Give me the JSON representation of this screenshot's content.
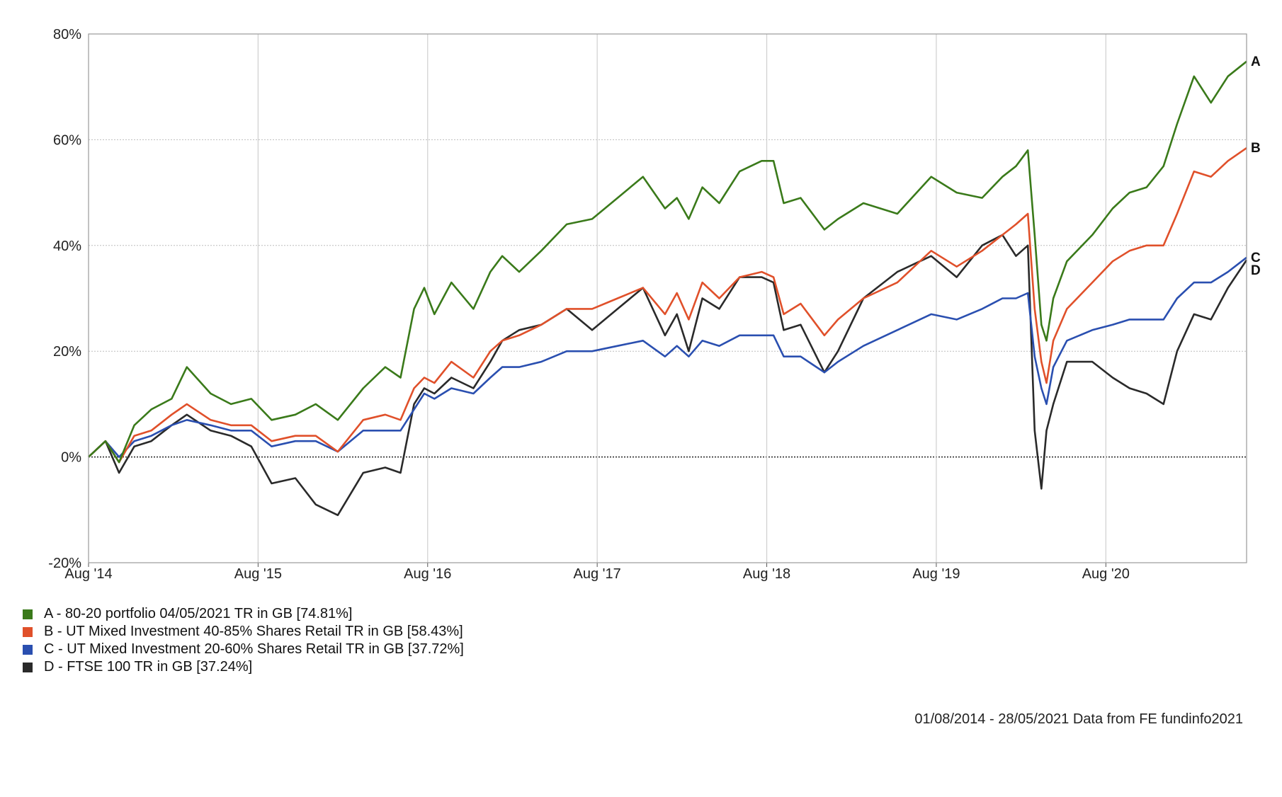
{
  "chart_data": {
    "type": "line",
    "y_tick_labels": [
      "80%",
      "60%",
      "40%",
      "20%",
      "0%",
      "-20%"
    ],
    "y_ticks": [
      80,
      60,
      40,
      20,
      0,
      -20
    ],
    "ylim": [
      -20,
      80
    ],
    "x_tick_labels": [
      "Aug '14",
      "Aug '15",
      "Aug '16",
      "Aug '17",
      "Aug '18",
      "Aug '19",
      "Aug '20"
    ],
    "x_ticks": [
      2014.58,
      2015.58,
      2016.58,
      2017.58,
      2018.58,
      2019.58,
      2020.58
    ],
    "xlim": [
      2014.58,
      2021.41
    ],
    "grid": true,
    "legend_position": "bottom-left",
    "series": [
      {
        "key": "A",
        "name": "A - 80-20 portfolio 04/05/2021 TR in GB [74.81%]",
        "color": "#3a7a1a",
        "x": [
          2014.58,
          2014.68,
          2014.76,
          2014.85,
          2014.95,
          2015.07,
          2015.16,
          2015.3,
          2015.42,
          2015.54,
          2015.66,
          2015.8,
          2015.92,
          2016.05,
          2016.2,
          2016.33,
          2016.42,
          2016.5,
          2016.56,
          2016.62,
          2016.72,
          2016.85,
          2016.95,
          2017.02,
          2017.12,
          2017.25,
          2017.4,
          2017.55,
          2017.7,
          2017.85,
          2017.98,
          2018.05,
          2018.12,
          2018.2,
          2018.3,
          2018.42,
          2018.55,
          2018.62,
          2018.68,
          2018.78,
          2018.92,
          2019.0,
          2019.15,
          2019.35,
          2019.55,
          2019.7,
          2019.85,
          2019.97,
          2020.05,
          2020.12,
          2020.16,
          2020.2,
          2020.23,
          2020.27,
          2020.35,
          2020.5,
          2020.62,
          2020.72,
          2020.82,
          2020.92,
          2021.0,
          2021.1,
          2021.2,
          2021.3,
          2021.41
        ],
        "values": [
          0,
          3,
          -1,
          6,
          9,
          11,
          17,
          12,
          10,
          11,
          7,
          8,
          10,
          7,
          13,
          17,
          15,
          28,
          32,
          27,
          33,
          28,
          35,
          38,
          35,
          39,
          44,
          45,
          49,
          53,
          47,
          49,
          45,
          51,
          48,
          54,
          56,
          56,
          48,
          49,
          43,
          45,
          48,
          46,
          53,
          50,
          49,
          53,
          55,
          58,
          42,
          25,
          22,
          30,
          37,
          42,
          47,
          50,
          51,
          55,
          63,
          72,
          67,
          72,
          74.81
        ]
      },
      {
        "key": "B",
        "name": "B - UT Mixed Investment 40-85% Shares Retail TR in GB [58.43%]",
        "color": "#e0502a",
        "x": [
          2014.58,
          2014.68,
          2014.76,
          2014.85,
          2014.95,
          2015.07,
          2015.16,
          2015.3,
          2015.42,
          2015.54,
          2015.66,
          2015.8,
          2015.92,
          2016.05,
          2016.2,
          2016.33,
          2016.42,
          2016.5,
          2016.56,
          2016.62,
          2016.72,
          2016.85,
          2016.95,
          2017.02,
          2017.12,
          2017.25,
          2017.4,
          2017.55,
          2017.7,
          2017.85,
          2017.98,
          2018.05,
          2018.12,
          2018.2,
          2018.3,
          2018.42,
          2018.55,
          2018.62,
          2018.68,
          2018.78,
          2018.92,
          2019.0,
          2019.15,
          2019.35,
          2019.55,
          2019.7,
          2019.85,
          2019.97,
          2020.05,
          2020.12,
          2020.16,
          2020.2,
          2020.23,
          2020.27,
          2020.35,
          2020.5,
          2020.62,
          2020.72,
          2020.82,
          2020.92,
          2021.0,
          2021.1,
          2021.2,
          2021.3,
          2021.41
        ],
        "values": [
          0,
          3,
          -1,
          4,
          5,
          8,
          10,
          7,
          6,
          6,
          3,
          4,
          4,
          1,
          7,
          8,
          7,
          13,
          15,
          14,
          18,
          15,
          20,
          22,
          23,
          25,
          28,
          28,
          30,
          32,
          27,
          31,
          26,
          33,
          30,
          34,
          35,
          34,
          27,
          29,
          23,
          26,
          30,
          33,
          39,
          36,
          39,
          42,
          44,
          46,
          28,
          18,
          14,
          22,
          28,
          33,
          37,
          39,
          40,
          40,
          46,
          54,
          53,
          56,
          58.43
        ]
      },
      {
        "key": "C",
        "name": "C - UT Mixed Investment 20-60% Shares Retail TR in GB [37.72%]",
        "color": "#2a4fb0",
        "x": [
          2014.58,
          2014.68,
          2014.76,
          2014.85,
          2014.95,
          2015.07,
          2015.16,
          2015.3,
          2015.42,
          2015.54,
          2015.66,
          2015.8,
          2015.92,
          2016.05,
          2016.2,
          2016.33,
          2016.42,
          2016.5,
          2016.56,
          2016.62,
          2016.72,
          2016.85,
          2016.95,
          2017.02,
          2017.12,
          2017.25,
          2017.4,
          2017.55,
          2017.7,
          2017.85,
          2017.98,
          2018.05,
          2018.12,
          2018.2,
          2018.3,
          2018.42,
          2018.55,
          2018.62,
          2018.68,
          2018.78,
          2018.92,
          2019.0,
          2019.15,
          2019.35,
          2019.55,
          2019.7,
          2019.85,
          2019.97,
          2020.05,
          2020.12,
          2020.16,
          2020.2,
          2020.23,
          2020.27,
          2020.35,
          2020.5,
          2020.62,
          2020.72,
          2020.82,
          2020.92,
          2021.0,
          2021.1,
          2021.2,
          2021.3,
          2021.41
        ],
        "values": [
          0,
          3,
          0,
          3,
          4,
          6,
          7,
          6,
          5,
          5,
          2,
          3,
          3,
          1,
          5,
          5,
          5,
          9,
          12,
          11,
          13,
          12,
          15,
          17,
          17,
          18,
          20,
          20,
          21,
          22,
          19,
          21,
          19,
          22,
          21,
          23,
          23,
          23,
          19,
          19,
          16,
          18,
          21,
          24,
          27,
          26,
          28,
          30,
          30,
          31,
          19,
          13,
          10,
          17,
          22,
          24,
          25,
          26,
          26,
          26,
          30,
          33,
          33,
          35,
          37.72
        ]
      },
      {
        "key": "D",
        "name": "D - FTSE 100 TR in GB [37.24%]",
        "color": "#2a2a2a",
        "x": [
          2014.58,
          2014.68,
          2014.76,
          2014.85,
          2014.95,
          2015.07,
          2015.16,
          2015.3,
          2015.42,
          2015.54,
          2015.66,
          2015.8,
          2015.92,
          2016.05,
          2016.2,
          2016.33,
          2016.42,
          2016.5,
          2016.56,
          2016.62,
          2016.72,
          2016.85,
          2016.95,
          2017.02,
          2017.12,
          2017.25,
          2017.4,
          2017.55,
          2017.7,
          2017.85,
          2017.98,
          2018.05,
          2018.12,
          2018.2,
          2018.3,
          2018.42,
          2018.55,
          2018.62,
          2018.68,
          2018.78,
          2018.92,
          2019.0,
          2019.15,
          2019.35,
          2019.55,
          2019.7,
          2019.85,
          2019.97,
          2020.05,
          2020.12,
          2020.16,
          2020.2,
          2020.23,
          2020.27,
          2020.35,
          2020.5,
          2020.62,
          2020.72,
          2020.82,
          2020.92,
          2021.0,
          2021.1,
          2021.2,
          2021.3,
          2021.41
        ],
        "values": [
          0,
          3,
          -3,
          2,
          3,
          6,
          8,
          5,
          4,
          2,
          -5,
          -4,
          -9,
          -11,
          -3,
          -2,
          -3,
          10,
          13,
          12,
          15,
          13,
          18,
          22,
          24,
          25,
          28,
          24,
          28,
          32,
          23,
          27,
          20,
          30,
          28,
          34,
          34,
          33,
          24,
          25,
          16,
          20,
          30,
          35,
          38,
          34,
          40,
          42,
          38,
          40,
          5,
          -6,
          5,
          10,
          18,
          18,
          15,
          13,
          12,
          10,
          20,
          27,
          26,
          32,
          37.24
        ]
      }
    ],
    "footer_note": "01/08/2014 - 28/05/2021 Data from FE fundinfo2021"
  }
}
